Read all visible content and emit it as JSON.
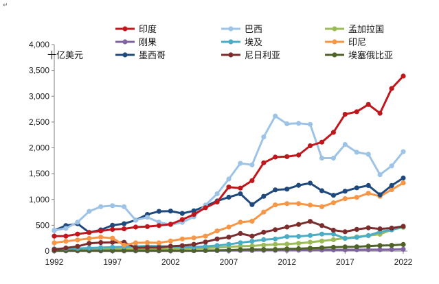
{
  "chart_data": {
    "type": "line",
    "unit_label": "十亿美元",
    "x": [
      1992,
      1993,
      1994,
      1995,
      1996,
      1997,
      1998,
      1999,
      2000,
      2001,
      2002,
      2003,
      2004,
      2005,
      2006,
      2007,
      2008,
      2009,
      2010,
      2011,
      2012,
      2013,
      2014,
      2015,
      2016,
      2017,
      2018,
      2019,
      2020,
      2021,
      2022
    ],
    "x_tick_labels": [
      "1992",
      "1997",
      "2002",
      "2007",
      "2012",
      "2017",
      "2022"
    ],
    "ylim": [
      0,
      4000
    ],
    "y_ticks": [
      0,
      500,
      1000,
      1500,
      2000,
      2500,
      3000,
      3500,
      4000
    ],
    "y_tick_labels": [
      "0",
      "500",
      "1,000",
      "1,500",
      "2,000",
      "2,500",
      "3,000",
      "3,500",
      "4,000"
    ],
    "corner_mark": "↵",
    "series": [
      {
        "name": "印度",
        "color": "#C0171C",
        "values": [
          290,
          290,
          330,
          360,
          390,
          420,
          430,
          465,
          475,
          495,
          520,
          610,
          710,
          840,
          950,
          1240,
          1220,
          1365,
          1710,
          1820,
          1830,
          1860,
          2040,
          2110,
          2300,
          2650,
          2700,
          2840,
          2670,
          3150,
          3390
        ]
      },
      {
        "name": "巴西",
        "color": "#9DC3E6",
        "values": [
          400,
          440,
          560,
          770,
          860,
          880,
          860,
          600,
          655,
          560,
          510,
          555,
          665,
          890,
          1110,
          1395,
          1700,
          1670,
          2210,
          2615,
          2465,
          2475,
          2455,
          1800,
          1800,
          2065,
          1915,
          1875,
          1480,
          1650,
          1925
        ]
      },
      {
        "name": "孟加拉国",
        "color": "#9BBB59",
        "values": [
          30,
          32,
          33,
          37,
          40,
          42,
          44,
          45,
          47,
          47,
          48,
          52,
          56,
          60,
          68,
          80,
          95,
          100,
          115,
          130,
          135,
          150,
          172,
          195,
          220,
          250,
          275,
          300,
          325,
          415,
          460
        ]
      },
      {
        "name": "刚果",
        "color": "#8064A2",
        "values": [
          3,
          3,
          3,
          3,
          3,
          3,
          3,
          3,
          3,
          3,
          3,
          4,
          5,
          6,
          8,
          9,
          12,
          10,
          13,
          15,
          16,
          18,
          20,
          22,
          24,
          25,
          26,
          28,
          28,
          31,
          34
        ]
      },
      {
        "name": "埃及",
        "color": "#4BACC6",
        "values": [
          42,
          47,
          52,
          60,
          68,
          76,
          84,
          90,
          100,
          97,
          88,
          80,
          78,
          90,
          108,
          130,
          162,
          190,
          220,
          235,
          280,
          285,
          302,
          330,
          330,
          245,
          265,
          300,
          375,
          410,
          475
        ]
      },
      {
        "name": "印尼",
        "color": "#F79646",
        "values": [
          160,
          190,
          215,
          245,
          270,
          250,
          115,
          160,
          165,
          160,
          195,
          235,
          255,
          290,
          390,
          465,
          560,
          580,
          755,
          895,
          920,
          920,
          890,
          860,
          935,
          1015,
          1040,
          1120,
          1060,
          1190,
          1320
        ]
      },
      {
        "name": "墨西哥",
        "color": "#1F497D",
        "values": [
          400,
          495,
          530,
          360,
          410,
          500,
          530,
          600,
          710,
          770,
          775,
          730,
          780,
          870,
          970,
          1045,
          1110,
          900,
          1060,
          1185,
          1200,
          1275,
          1315,
          1170,
          1080,
          1160,
          1225,
          1270,
          1090,
          1270,
          1415
        ]
      },
      {
        "name": "尼日利亚",
        "color": "#7B2C2C",
        "values": [
          30,
          60,
          90,
          150,
          165,
          170,
          170,
          65,
          70,
          70,
          95,
          105,
          130,
          175,
          235,
          270,
          340,
          290,
          365,
          415,
          465,
          515,
          575,
          495,
          405,
          375,
          420,
          450,
          430,
          445,
          480
        ]
      },
      {
        "name": "埃塞俄比亚",
        "color": "#4F6228",
        "values": [
          10,
          10,
          10,
          10,
          10,
          10,
          10,
          10,
          10,
          10,
          10,
          10,
          10,
          12,
          15,
          20,
          27,
          32,
          30,
          32,
          43,
          47,
          56,
          64,
          74,
          81,
          84,
          96,
          107,
          111,
          127
        ]
      }
    ]
  }
}
